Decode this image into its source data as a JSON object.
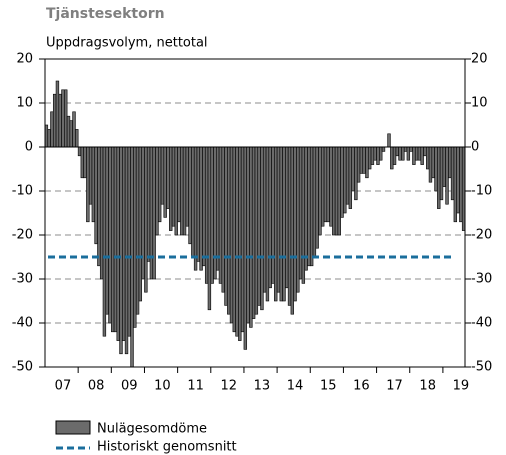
{
  "chart_data": {
    "type": "bar",
    "title": "Tjänstesektorn",
    "subtitle": "Uppdragsvolym, nettotal",
    "categories": [
      null,
      null,
      null,
      null,
      null,
      null,
      "07",
      null,
      null,
      null,
      null,
      null,
      null,
      null,
      null,
      null,
      null,
      null,
      "08",
      null,
      null,
      null,
      null,
      null,
      null,
      null,
      null,
      null,
      null,
      null,
      "09",
      null,
      null,
      null,
      null,
      null,
      null,
      null,
      null,
      null,
      null,
      null,
      "10",
      null,
      null,
      null,
      null,
      null,
      null,
      null,
      null,
      null,
      null,
      null,
      "11",
      null,
      null,
      null,
      null,
      null,
      null,
      null,
      null,
      null,
      null,
      null,
      "12",
      null,
      null,
      null,
      null,
      null,
      null,
      null,
      null,
      null,
      null,
      null,
      "13",
      null,
      null,
      null,
      null,
      null,
      null,
      null,
      null,
      null,
      null,
      null,
      "14",
      null,
      null,
      null,
      null,
      null,
      null,
      null,
      null,
      null,
      null,
      null,
      "15",
      null,
      null,
      null,
      null,
      null,
      null,
      null,
      null,
      null,
      null,
      null,
      "16",
      null,
      null,
      null,
      null,
      null,
      null,
      null,
      null,
      null,
      null,
      null,
      "17",
      null,
      null,
      null,
      null,
      null,
      null,
      null,
      null,
      null,
      null,
      null,
      "18",
      null,
      null,
      null,
      null,
      null,
      null,
      null,
      null,
      null,
      null,
      null,
      "19",
      null
    ],
    "series": [
      {
        "name": "Nulägesomdöme",
        "color": "#6b6b6b",
        "values": [
          5,
          4,
          8,
          12,
          15,
          12,
          13,
          13,
          7,
          6,
          8,
          4,
          -2,
          -7,
          -7,
          -17,
          -13,
          -17,
          -22,
          -27,
          -30,
          -43,
          -38,
          -40,
          -42,
          -42,
          -44,
          -47,
          -44,
          -47,
          -43,
          -50,
          -41,
          -38,
          -35,
          -30,
          -33,
          -26,
          -30,
          -30,
          -20,
          -17,
          -13,
          -16,
          -14,
          -19,
          -18,
          -20,
          -17,
          -20,
          -20,
          -18,
          -22,
          -25,
          -28,
          -26,
          -28,
          -27,
          -31,
          -37,
          -31,
          -30,
          -28,
          -31,
          -33,
          -36,
          -38,
          -40,
          -42,
          -43,
          -44,
          -42,
          -46,
          -40,
          -41,
          -39,
          -38,
          -36,
          -37,
          -33,
          -35,
          -32,
          -31,
          -35,
          -33,
          -35,
          -35,
          -32,
          -36,
          -38,
          -35,
          -33,
          -30,
          -31,
          -28,
          -27,
          -27,
          -25,
          -23,
          -20,
          -18,
          -17,
          -17,
          -18,
          -20,
          -20,
          -20,
          -16,
          -15,
          -13,
          -14,
          -10,
          -12,
          -8,
          -6,
          -6,
          -7,
          -5,
          -4,
          -3,
          -4,
          -3,
          -1,
          0,
          3,
          -5,
          -4,
          -2,
          -3,
          -3,
          -1,
          -3,
          -1,
          -4,
          -3,
          -3,
          -4,
          -2,
          -5,
          -8,
          -7,
          -10,
          -14,
          -12,
          -9,
          -13,
          -7,
          -12,
          -17,
          -15,
          -17,
          -19
        ]
      }
    ],
    "average": {
      "name": "Historiskt genomsnitt",
      "value": -25,
      "color": "#1a6e9c"
    },
    "ylim": [
      -50,
      20
    ],
    "yticks": [
      -50,
      -40,
      -30,
      -20,
      -10,
      0,
      10,
      20
    ],
    "grid": true
  }
}
